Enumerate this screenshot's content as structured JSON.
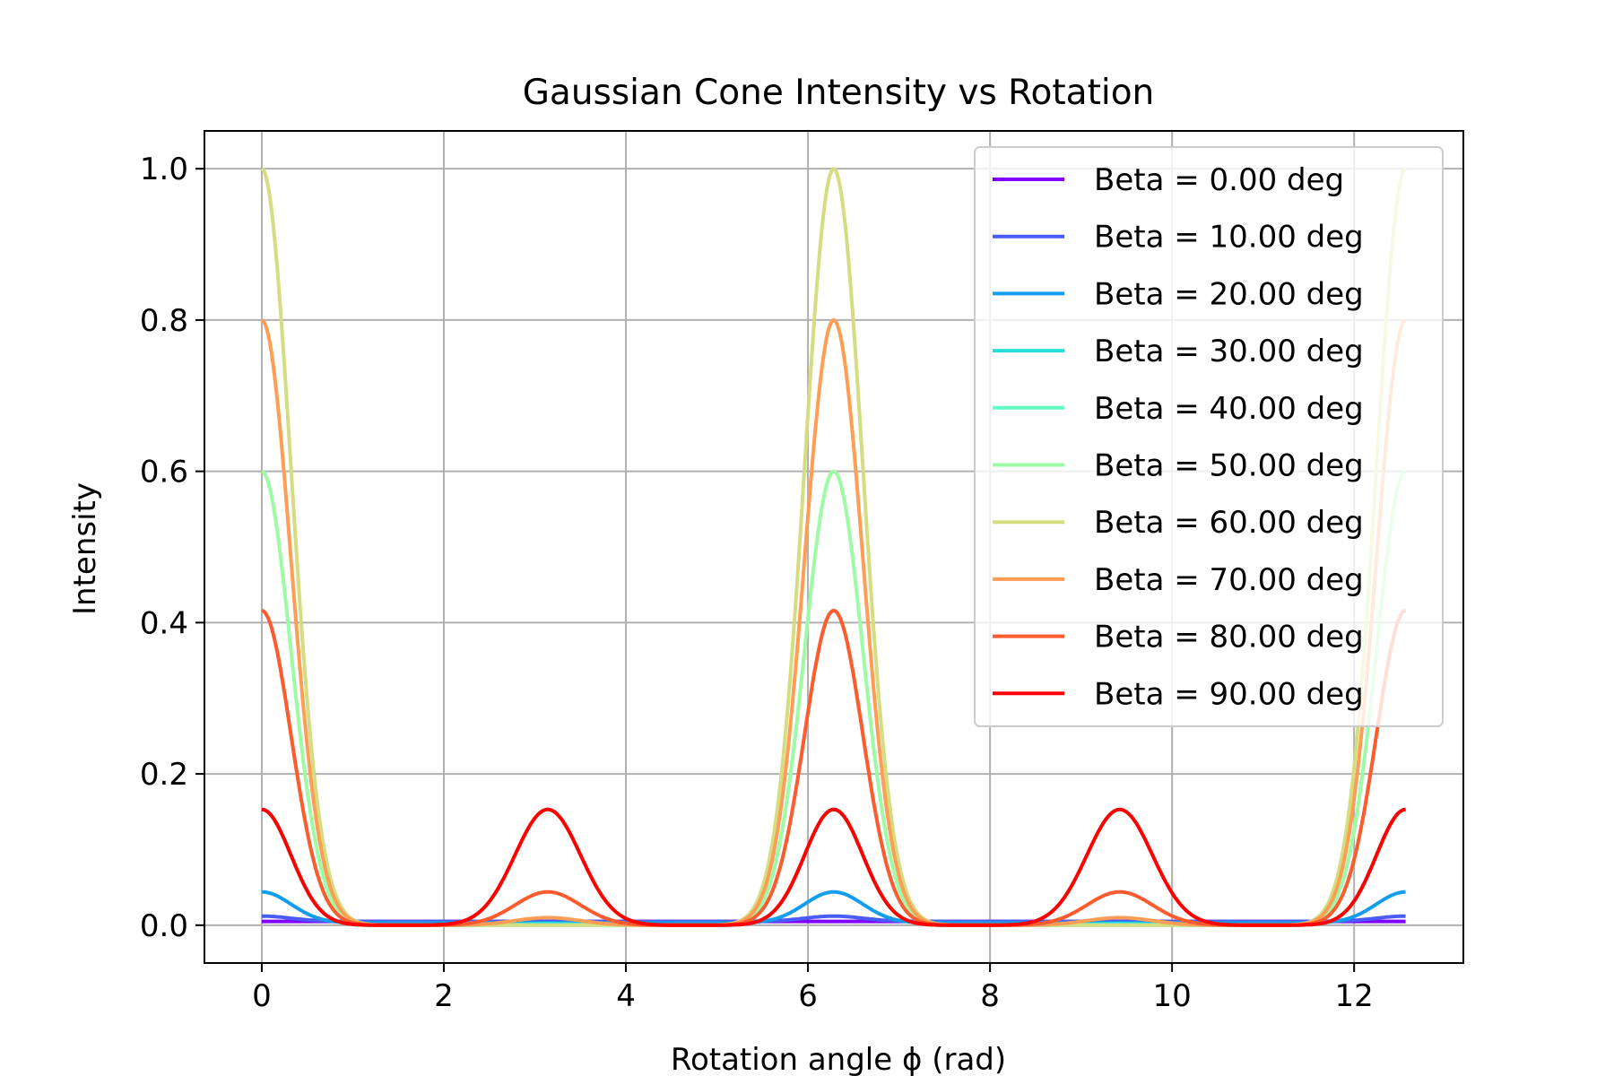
{
  "chart_data": {
    "type": "line",
    "title": "Gaussian Cone Intensity vs Rotation",
    "xlabel": "Rotation angle ϕ (rad)",
    "ylabel": "Intensity",
    "xlim": [
      -0.63,
      13.2
    ],
    "ylim": [
      -0.05,
      1.05
    ],
    "x_ticks": [
      0,
      2,
      4,
      6,
      8,
      10,
      12
    ],
    "y_ticks": [
      0.0,
      0.2,
      0.4,
      0.6,
      0.8,
      1.0
    ],
    "x_tick_labels": [
      "0",
      "2",
      "4",
      "6",
      "8",
      "10",
      "12"
    ],
    "y_tick_labels": [
      "0.0",
      "0.2",
      "0.4",
      "0.6",
      "0.8",
      "1.0"
    ],
    "grid": true,
    "legend_position": "top-right",
    "x_range": [
      0,
      12.566
    ],
    "series": [
      {
        "name": "Beta = 0.00 deg",
        "color": "#7f00ff",
        "peak_0": 0.005,
        "peak_pi": 0.005,
        "floor": 0.005
      },
      {
        "name": "Beta = 10.00 deg",
        "color": "#4a5cf7",
        "peak_0": 0.012,
        "peak_pi": 0.005,
        "floor": 0.005
      },
      {
        "name": "Beta = 20.00 deg",
        "color": "#159ded",
        "peak_0": 0.044,
        "peak_pi": 0.003,
        "floor": 0.003
      },
      {
        "name": "Beta = 30.00 deg",
        "color": "#2adddd",
        "peak_0": 0.153,
        "peak_pi": 0.002,
        "floor": 0.0
      },
      {
        "name": "Beta = 40.00 deg",
        "color": "#62fbc4",
        "peak_0": 0.416,
        "peak_pi": 0.0,
        "floor": 0.0
      },
      {
        "name": "Beta = 50.00 deg",
        "color": "#9cfba4",
        "peak_0": 0.6,
        "peak_pi": 0.0,
        "floor": 0.0
      },
      {
        "name": "Beta = 60.00 deg",
        "color": "#d4dd80",
        "peak_0": 1.0,
        "peak_pi": 0.0,
        "floor": 0.0
      },
      {
        "name": "Beta = 70.00 deg",
        "color": "#ff9d55",
        "peak_0": 0.8,
        "peak_pi": 0.01,
        "floor": 0.0
      },
      {
        "name": "Beta = 80.00 deg",
        "color": "#ff5b2e",
        "peak_0": 0.416,
        "peak_pi": 0.044,
        "floor": 0.0
      },
      {
        "name": "Beta = 90.00 deg",
        "color": "#ff0000",
        "peak_0": 0.153,
        "peak_pi": 0.153,
        "floor": 0.0
      }
    ]
  }
}
